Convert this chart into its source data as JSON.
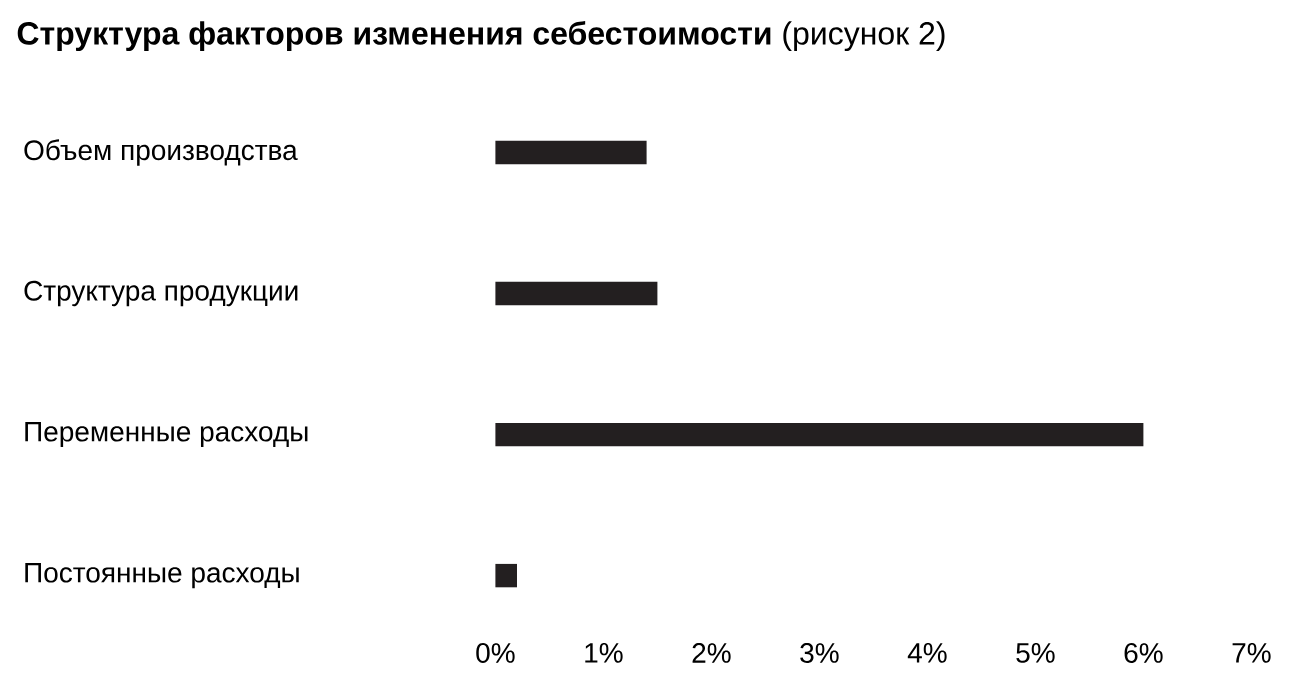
{
  "chart_data": {
    "type": "bar",
    "orientation": "horizontal",
    "title": "**Структура факторов изменения себестоимости** (рисунок 2)",
    "categories": [
      "Объем производства",
      "Структура продукции",
      "Переменные расходы",
      "Постоянные расходы"
    ],
    "values": [
      1.4,
      1.5,
      6.0,
      0.2
    ],
    "color": "#231f20",
    "xlim": [
      0,
      7
    ],
    "xticks": [
      {
        "value": 0,
        "label": "0%"
      },
      {
        "value": 1,
        "label": "1%"
      },
      {
        "value": 2,
        "label": "2%"
      },
      {
        "value": 3,
        "label": "3%"
      },
      {
        "value": 4,
        "label": "4%"
      },
      {
        "value": 5,
        "label": "5%"
      },
      {
        "value": 6,
        "label": "6%"
      },
      {
        "value": 7,
        "label": "7%"
      }
    ],
    "grid": false
  }
}
